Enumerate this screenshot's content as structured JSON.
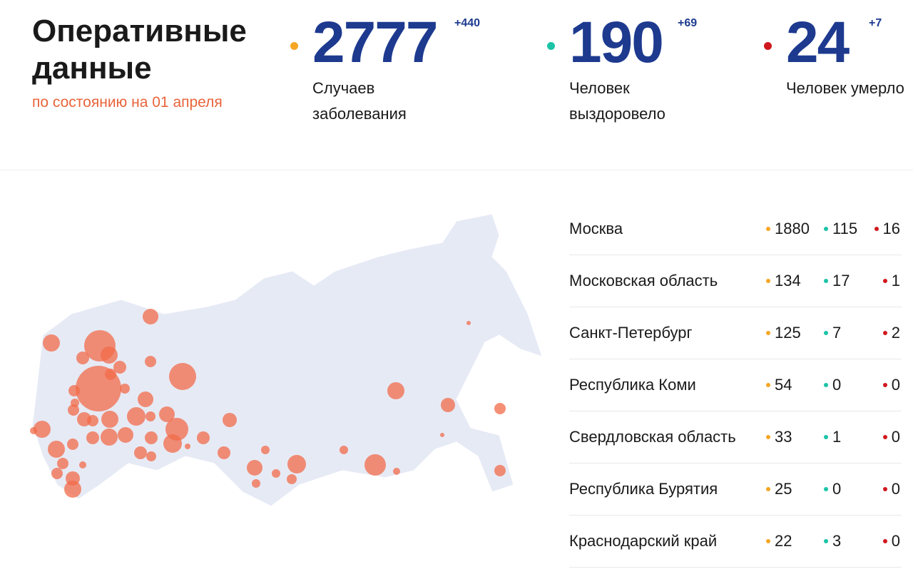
{
  "header": {
    "title": "Оперативные данные",
    "subtitle": "по состоянию на 01 апреля"
  },
  "stats": [
    {
      "value": 2777,
      "delta": "+440",
      "label": "Случаев заболевания"
    },
    {
      "value": 190,
      "delta": "+69",
      "label": "Человек выздоровело"
    },
    {
      "value": 24,
      "delta": "+7",
      "label": "Человек умерло"
    }
  ],
  "table": {
    "rows": [
      {
        "region": "Москва",
        "cases": 1880,
        "recovered": 115,
        "deaths": 16
      },
      {
        "region": "Московская область",
        "cases": 134,
        "recovered": 17,
        "deaths": 1
      },
      {
        "region": "Санкт-Петербург",
        "cases": 125,
        "recovered": 7,
        "deaths": 2
      },
      {
        "region": "Республика Коми",
        "cases": 54,
        "recovered": 0,
        "deaths": 0
      },
      {
        "region": "Свердловская область",
        "cases": 33,
        "recovered": 1,
        "deaths": 0
      },
      {
        "region": "Республика Бурятия",
        "cases": 25,
        "recovered": 0,
        "deaths": 0
      },
      {
        "region": "Краснодарский край",
        "cases": 22,
        "recovered": 3,
        "deaths": 0
      }
    ]
  }
}
